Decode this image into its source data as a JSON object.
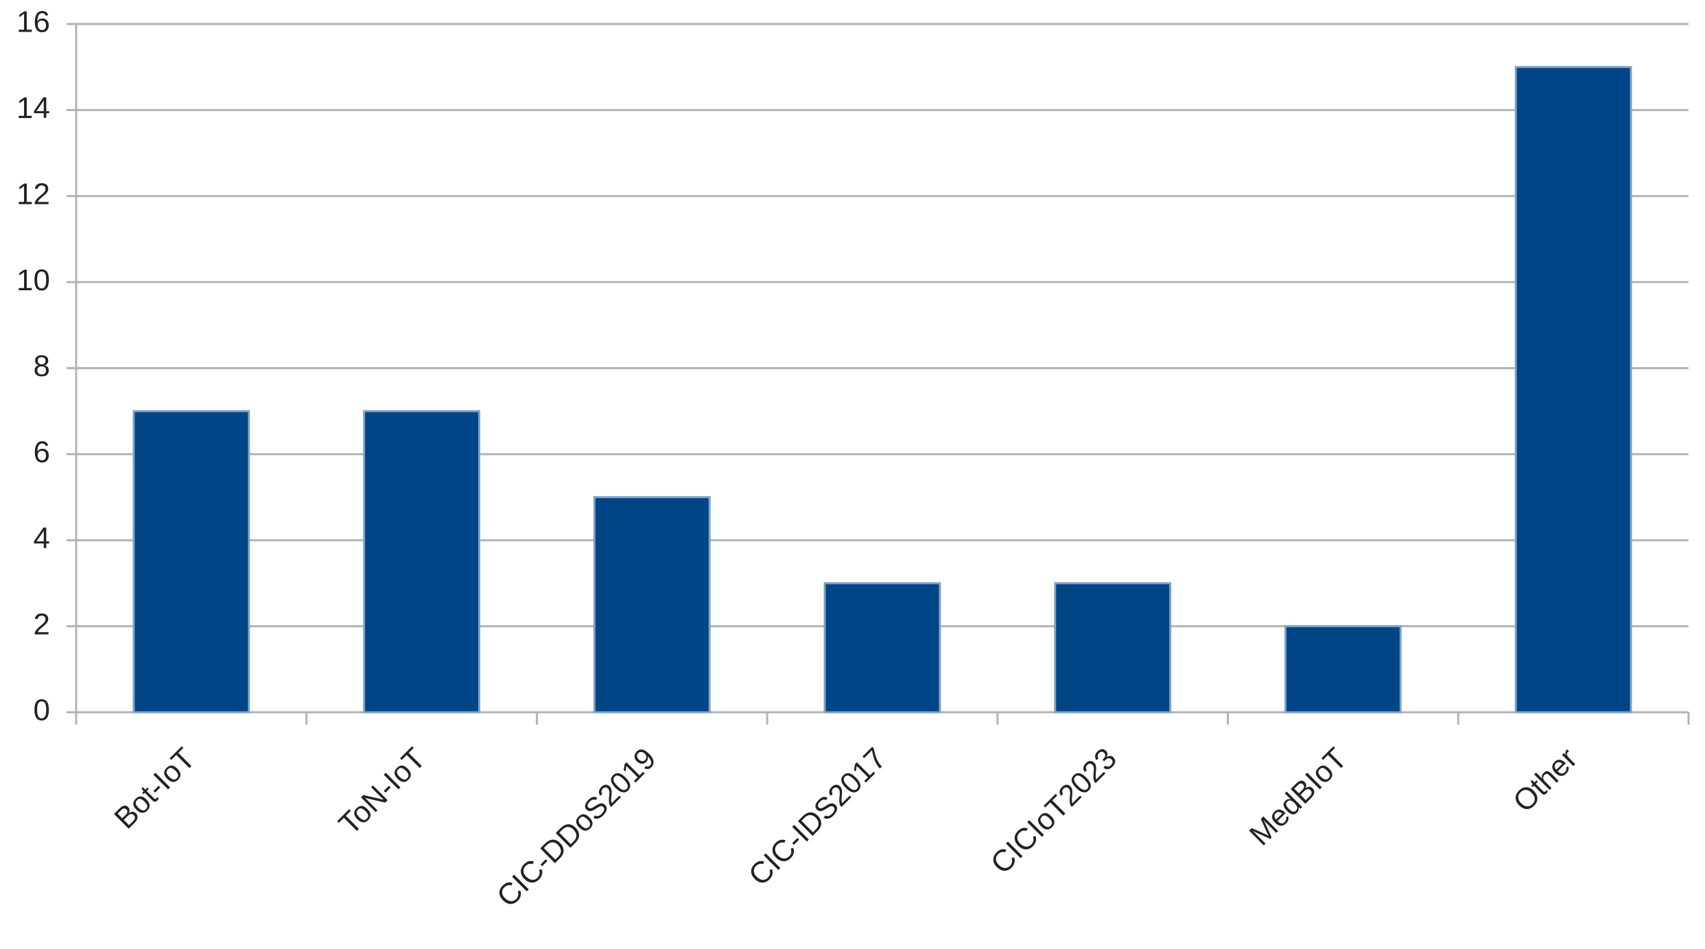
{
  "chart_data": {
    "type": "bar",
    "categories": [
      "Bot-IoT",
      "ToN-IoT",
      "CIC-DDoS2019",
      "CIC-IDS2017",
      "CICIoT2023",
      "MedBIoT",
      "Other"
    ],
    "values": [
      7,
      7,
      5,
      3,
      3,
      2,
      15
    ],
    "color": "#004586",
    "ylim": [
      0,
      16
    ],
    "yticks": [
      0,
      2,
      4,
      6,
      8,
      10,
      12,
      14,
      16
    ],
    "grid": true
  }
}
